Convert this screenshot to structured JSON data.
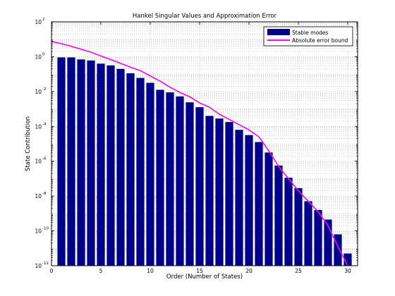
{
  "chart_data": {
    "type": "bar",
    "title": "Hankel Singular Values and Approximation Error",
    "xlabel": "Order (Number of States)",
    "ylabel": "State Contribution",
    "yscale": "log",
    "xlim": [
      0,
      31
    ],
    "ylim_exponents": [
      -12,
      2
    ],
    "x_ticks": [
      0,
      5,
      10,
      15,
      20,
      25,
      30
    ],
    "y_tick_exponents": [
      -12,
      -10,
      -8,
      -6,
      -4,
      -2,
      0,
      2
    ],
    "grid": true,
    "legend_position": "top-right",
    "series": [
      {
        "name": "Stable modes",
        "kind": "bar",
        "color": "#00008f",
        "x": [
          1,
          2,
          3,
          4,
          5,
          6,
          7,
          8,
          9,
          10,
          11,
          12,
          13,
          14,
          15,
          16,
          17,
          18,
          19,
          20,
          21,
          22,
          23,
          24,
          25,
          26,
          27,
          28,
          29,
          30
        ],
        "log10_values": [
          -0.04,
          -0.04,
          -0.16,
          -0.22,
          -0.4,
          -0.5,
          -0.7,
          -0.95,
          -1.22,
          -1.5,
          -1.9,
          -2.05,
          -2.28,
          -2.62,
          -2.9,
          -3.4,
          -3.55,
          -3.75,
          -4.2,
          -4.5,
          -4.9,
          -5.5,
          -6.25,
          -6.95,
          -7.55,
          -8.3,
          -8.8,
          -9.35,
          -10.2,
          -11.3
        ]
      },
      {
        "name": "Absolute error bound",
        "kind": "line",
        "color": "#ff00ff",
        "x": [
          0,
          1,
          2,
          3,
          4,
          5,
          6,
          7,
          8,
          9,
          10,
          11,
          12,
          13,
          14,
          15,
          16,
          17,
          18,
          19,
          20,
          21,
          22,
          23,
          24,
          25,
          26,
          27,
          28,
          29,
          30
        ],
        "log10_values": [
          0.88,
          0.75,
          0.6,
          0.43,
          0.26,
          0.04,
          -0.16,
          -0.38,
          -0.6,
          -0.8,
          -1.1,
          -1.4,
          -1.75,
          -2.05,
          -2.3,
          -2.65,
          -2.9,
          -3.3,
          -3.6,
          -3.9,
          -4.2,
          -4.6,
          -5.4,
          -6.3,
          -7.0,
          -7.7,
          -8.3,
          -8.9,
          -9.7,
          -10.9,
          -12.0
        ]
      }
    ]
  }
}
